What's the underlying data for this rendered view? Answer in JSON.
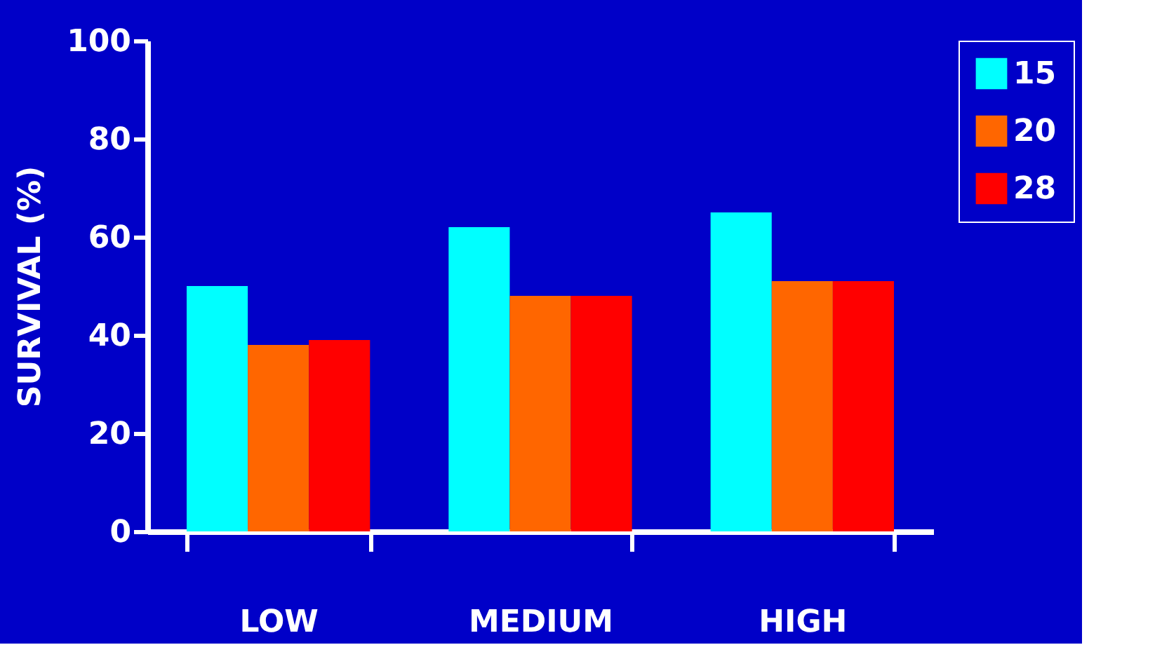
{
  "chart_data": {
    "type": "bar",
    "ylabel": "SURVIVAL (%)",
    "categories": [
      "LOW",
      "MEDIUM",
      "HIGH"
    ],
    "series": [
      {
        "name": "15",
        "color": "#00ffff",
        "values": [
          50,
          62,
          65
        ]
      },
      {
        "name": "20",
        "color": "#ff6600",
        "values": [
          38,
          48,
          51
        ]
      },
      {
        "name": "28",
        "color": "#ff0000",
        "values": [
          39,
          48,
          51
        ]
      }
    ],
    "ylim": [
      0,
      100
    ],
    "yticks": [
      0,
      20,
      40,
      60,
      80,
      100
    ],
    "grid": false,
    "legend": "right"
  }
}
